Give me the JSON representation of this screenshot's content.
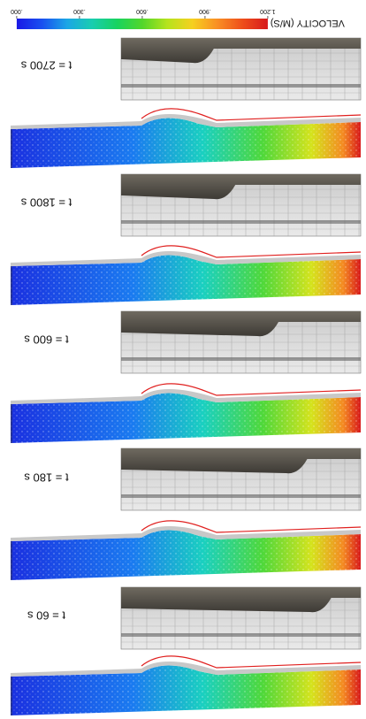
{
  "colorbar": {
    "title": "VELOCITY (M/S)",
    "ticks": [
      "1.200",
      ".900",
      ".600",
      ".300",
      ".000"
    ],
    "stops": [
      "#d7191c",
      "#ee4d1a",
      "#f98e24",
      "#f6d01f",
      "#b6e31d",
      "#52d62a",
      "#18d35f",
      "#19cdb0",
      "#1ba6e6",
      "#1a4ff0",
      "#1a18e6"
    ]
  },
  "panels": [
    {
      "time_label": "t = 2700 s",
      "time_s": 2700,
      "step_fraction": 0.65
    },
    {
      "time_label": "t = 1800 s",
      "time_s": 1800,
      "step_fraction": 0.56
    },
    {
      "time_label": "t = 600 s",
      "time_s": 600,
      "step_fraction": 0.38
    },
    {
      "time_label": "t = 180 s",
      "time_s": 180,
      "step_fraction": 0.26
    },
    {
      "time_label": "t = 60 s",
      "time_s": 60,
      "step_fraction": 0.16
    }
  ]
}
